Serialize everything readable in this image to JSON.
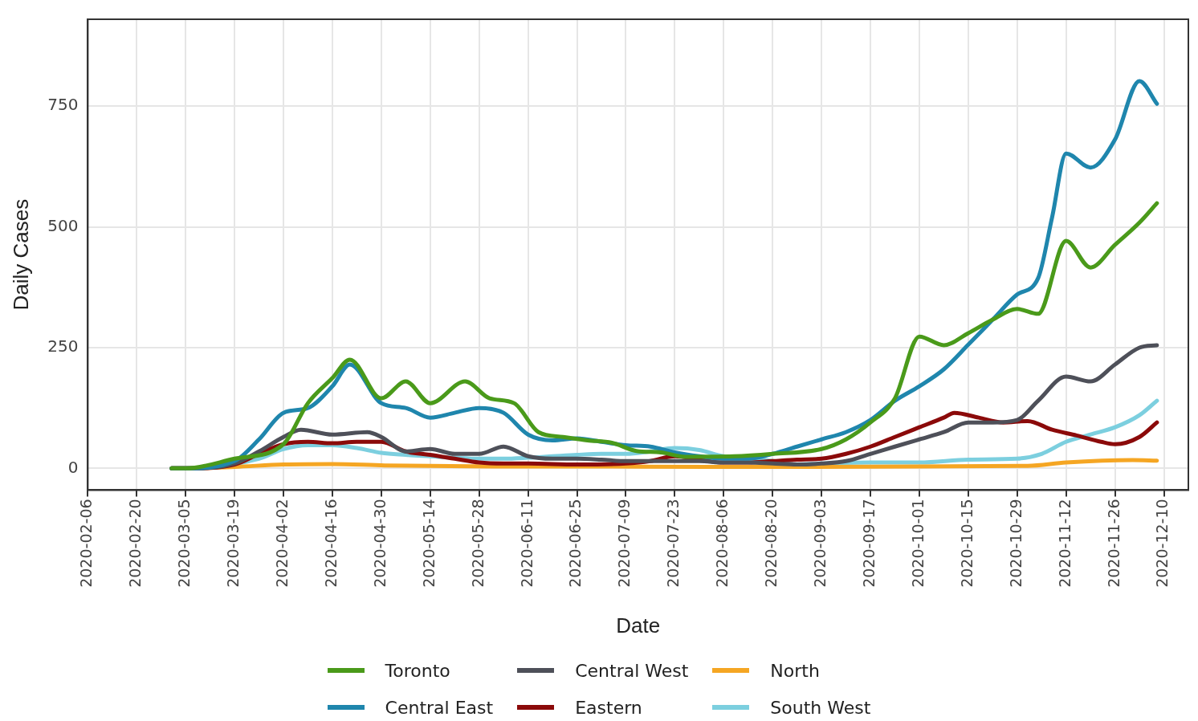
{
  "chart_data": {
    "type": "line",
    "xlabel": "Date",
    "ylabel": "Daily Cases",
    "xlim": [
      "2020-02-06",
      "2020-12-17"
    ],
    "xticks": [
      "2020-02-06",
      "2020-02-20",
      "2020-03-05",
      "2020-03-19",
      "2020-04-02",
      "2020-04-16",
      "2020-04-30",
      "2020-05-14",
      "2020-05-28",
      "2020-06-11",
      "2020-06-25",
      "2020-07-09",
      "2020-07-23",
      "2020-08-06",
      "2020-08-20",
      "2020-09-03",
      "2020-09-17",
      "2020-10-01",
      "2020-10-15",
      "2020-10-29",
      "2020-11-12",
      "2020-11-26",
      "2020-12-10"
    ],
    "ylim": [
      -45,
      930
    ],
    "yticks": [
      0,
      250,
      500,
      750
    ],
    "grid": true,
    "legend": "bottom",
    "marker": "none",
    "line_style": "solid",
    "series": [
      {
        "name": "Toronto",
        "color": "#4a9a1a",
        "x": [
          "2020-03-01",
          "2020-03-05",
          "2020-03-19",
          "2020-04-02",
          "2020-04-09",
          "2020-04-16",
          "2020-04-21",
          "2020-04-30",
          "2020-05-07",
          "2020-05-14",
          "2020-05-24",
          "2020-05-31",
          "2020-06-07",
          "2020-06-14",
          "2020-06-21",
          "2020-06-28",
          "2020-07-05",
          "2020-07-12",
          "2020-07-19",
          "2020-07-26",
          "2020-08-09",
          "2020-08-20",
          "2020-09-03",
          "2020-09-10",
          "2020-09-17",
          "2020-09-24",
          "2020-10-01",
          "2020-10-08",
          "2020-10-15",
          "2020-10-22",
          "2020-10-29",
          "2020-11-04",
          "2020-11-12",
          "2020-11-19",
          "2020-11-26",
          "2020-12-03",
          "2020-12-08"
        ],
        "values": [
          0,
          0,
          20,
          50,
          135,
          187,
          225,
          145,
          180,
          135,
          180,
          145,
          135,
          75,
          65,
          58,
          53,
          36,
          33,
          24,
          25,
          30,
          40,
          60,
          95,
          145,
          273,
          255,
          280,
          308,
          330,
          320,
          471,
          416,
          463,
          509,
          549
        ]
      },
      {
        "name": "Central East",
        "color": "#1f86ad",
        "x": [
          "2020-03-01",
          "2020-03-05",
          "2020-03-19",
          "2020-03-26",
          "2020-04-02",
          "2020-04-09",
          "2020-04-16",
          "2020-04-21",
          "2020-04-30",
          "2020-05-07",
          "2020-05-14",
          "2020-05-21",
          "2020-05-28",
          "2020-06-04",
          "2020-06-11",
          "2020-06-18",
          "2020-06-25",
          "2020-07-02",
          "2020-07-09",
          "2020-07-16",
          "2020-07-23",
          "2020-07-30",
          "2020-08-06",
          "2020-08-13",
          "2020-08-20",
          "2020-08-27",
          "2020-09-03",
          "2020-09-10",
          "2020-09-17",
          "2020-09-24",
          "2020-10-01",
          "2020-10-08",
          "2020-10-15",
          "2020-10-22",
          "2020-10-29",
          "2020-11-04",
          "2020-11-08",
          "2020-11-12",
          "2020-11-19",
          "2020-11-26",
          "2020-12-03",
          "2020-12-08"
        ],
        "values": [
          0,
          0,
          15,
          60,
          115,
          125,
          170,
          215,
          135,
          125,
          105,
          115,
          125,
          115,
          70,
          58,
          62,
          55,
          48,
          45,
          33,
          25,
          20,
          20,
          30,
          45,
          60,
          75,
          100,
          140,
          170,
          205,
          256,
          308,
          360,
          394,
          520,
          652,
          623,
          681,
          802,
          755
        ]
      },
      {
        "name": "Central West",
        "color": "#4e5059",
        "x": [
          "2020-03-01",
          "2020-03-05",
          "2020-03-19",
          "2020-03-26",
          "2020-04-02",
          "2020-04-07",
          "2020-04-16",
          "2020-04-26",
          "2020-04-30",
          "2020-05-07",
          "2020-05-14",
          "2020-05-21",
          "2020-05-28",
          "2020-06-04",
          "2020-06-11",
          "2020-06-18",
          "2020-06-25",
          "2020-07-02",
          "2020-07-09",
          "2020-07-16",
          "2020-07-23",
          "2020-07-30",
          "2020-08-06",
          "2020-08-13",
          "2020-08-20",
          "2020-08-27",
          "2020-09-03",
          "2020-09-10",
          "2020-09-17",
          "2020-09-24",
          "2020-10-01",
          "2020-10-08",
          "2020-10-15",
          "2020-10-22",
          "2020-10-29",
          "2020-11-04",
          "2020-11-12",
          "2020-11-19",
          "2020-11-26",
          "2020-12-03",
          "2020-12-08"
        ],
        "values": [
          0,
          0,
          10,
          35,
          65,
          80,
          70,
          75,
          65,
          35,
          40,
          30,
          30,
          45,
          25,
          20,
          20,
          18,
          15,
          15,
          15,
          15,
          12,
          12,
          10,
          8,
          10,
          15,
          30,
          45,
          60,
          75,
          95,
          95,
          100,
          140,
          190,
          180,
          215,
          250,
          255
        ]
      },
      {
        "name": "Eastern",
        "color": "#8b0a0a",
        "x": [
          "2020-03-01",
          "2020-03-05",
          "2020-03-19",
          "2020-03-26",
          "2020-04-02",
          "2020-04-09",
          "2020-04-16",
          "2020-04-23",
          "2020-04-30",
          "2020-05-07",
          "2020-05-14",
          "2020-05-21",
          "2020-05-28",
          "2020-06-04",
          "2020-06-11",
          "2020-06-25",
          "2020-07-09",
          "2020-07-16",
          "2020-07-23",
          "2020-07-30",
          "2020-08-06",
          "2020-08-13",
          "2020-08-20",
          "2020-08-27",
          "2020-09-03",
          "2020-09-10",
          "2020-09-17",
          "2020-09-24",
          "2020-10-01",
          "2020-10-08",
          "2020-10-11",
          "2020-10-18",
          "2020-10-25",
          "2020-11-01",
          "2020-11-08",
          "2020-11-15",
          "2020-11-22",
          "2020-11-26",
          "2020-12-03",
          "2020-12-08"
        ],
        "values": [
          0,
          0,
          8,
          30,
          50,
          55,
          52,
          55,
          55,
          35,
          28,
          20,
          12,
          10,
          10,
          8,
          10,
          15,
          25,
          18,
          12,
          12,
          15,
          18,
          20,
          30,
          45,
          65,
          85,
          105,
          115,
          105,
          95,
          98,
          80,
          68,
          55,
          50,
          65,
          95
        ]
      },
      {
        "name": "North",
        "color": "#f5a623",
        "x": [
          "2020-03-01",
          "2020-03-05",
          "2020-03-19",
          "2020-04-02",
          "2020-04-16",
          "2020-05-01",
          "2020-06-01",
          "2020-07-01",
          "2020-08-01",
          "2020-09-01",
          "2020-10-01",
          "2020-11-01",
          "2020-11-12",
          "2020-12-01",
          "2020-12-08"
        ],
        "values": [
          0,
          0,
          3,
          8,
          9,
          6,
          4,
          4,
          3,
          3,
          4,
          5,
          12,
          17,
          16
        ]
      },
      {
        "name": "South West",
        "color": "#7ccfdf",
        "x": [
          "2020-03-01",
          "2020-03-05",
          "2020-03-19",
          "2020-03-26",
          "2020-04-02",
          "2020-04-09",
          "2020-04-16",
          "2020-04-23",
          "2020-04-30",
          "2020-05-07",
          "2020-05-14",
          "2020-05-21",
          "2020-05-28",
          "2020-06-04",
          "2020-06-11",
          "2020-06-18",
          "2020-06-25",
          "2020-07-02",
          "2020-07-09",
          "2020-07-16",
          "2020-07-23",
          "2020-07-30",
          "2020-08-06",
          "2020-08-13",
          "2020-08-20",
          "2020-08-27",
          "2020-09-03",
          "2020-09-17",
          "2020-10-01",
          "2020-10-15",
          "2020-10-29",
          "2020-11-05",
          "2020-11-12",
          "2020-11-19",
          "2020-11-26",
          "2020-12-03",
          "2020-12-08"
        ],
        "values": [
          0,
          0,
          null,
          20,
          40,
          48,
          48,
          42,
          32,
          28,
          25,
          22,
          20,
          20,
          22,
          25,
          28,
          30,
          30,
          35,
          42,
          38,
          25,
          22,
          15,
          8,
          10,
          12,
          12,
          18,
          20,
          30,
          55,
          70,
          85,
          110,
          140
        ]
      }
    ]
  }
}
